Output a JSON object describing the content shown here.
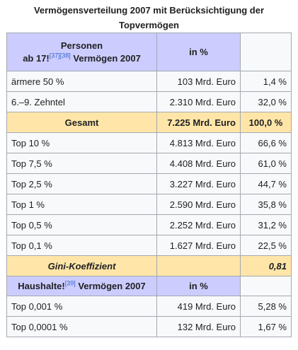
{
  "caption": {
    "line1": "Vermögensverteilung 2007 mit Berücksichtigung der",
    "line2": "Topvermögen"
  },
  "header1": {
    "col1_line1": "Personen",
    "col1_prefix": "ab 17!",
    "col1_ref1": "[37]",
    "col1_ref2": "[38]",
    "col1_suffix": " Vermögen 2007",
    "col2": "in %"
  },
  "rows_a": [
    {
      "label": "ärmere 50 %",
      "value": "103 Mrd. Euro",
      "pct": "1,4 %"
    },
    {
      "label": "6.–9. Zehntel",
      "value": "2.310 Mrd. Euro",
      "pct": "32,0 %"
    }
  ],
  "total": {
    "label": "Gesamt",
    "value": "7.225 Mrd. Euro",
    "pct": "100,0 %"
  },
  "rows_b": [
    {
      "label": "Top 10 %",
      "value": "4.813 Mrd. Euro",
      "pct": "66,6 %"
    },
    {
      "label": "Top 7,5 %",
      "value": "4.408 Mrd. Euro",
      "pct": "61,0 %"
    },
    {
      "label": "Top 2,5 %",
      "value": "3.227 Mrd. Euro",
      "pct": "44,7 %"
    },
    {
      "label": "Top 1 %",
      "value": "2.590 Mrd. Euro",
      "pct": "35,8 %"
    },
    {
      "label": "Top 0,5 %",
      "value": "2.252 Mrd. Euro",
      "pct": "31,2 %"
    },
    {
      "label": "Top 0,1 %",
      "value": "1.627 Mrd. Euro",
      "pct": "22,5 %"
    }
  ],
  "gini": {
    "label": "Gini-Koeffizient",
    "value": "0,81"
  },
  "header2": {
    "col1_prefix": "Haushalte!",
    "col1_ref": "[39]",
    "col1_suffix": " Vermögen 2007",
    "col2": "in %"
  },
  "rows_c": [
    {
      "label": "Top 0,001 %",
      "value": "419 Mrd. Euro",
      "pct": "5,28 %"
    },
    {
      "label": "Top 0,0001 %",
      "value": "132 Mrd. Euro",
      "pct": "1,67 %"
    }
  ]
}
